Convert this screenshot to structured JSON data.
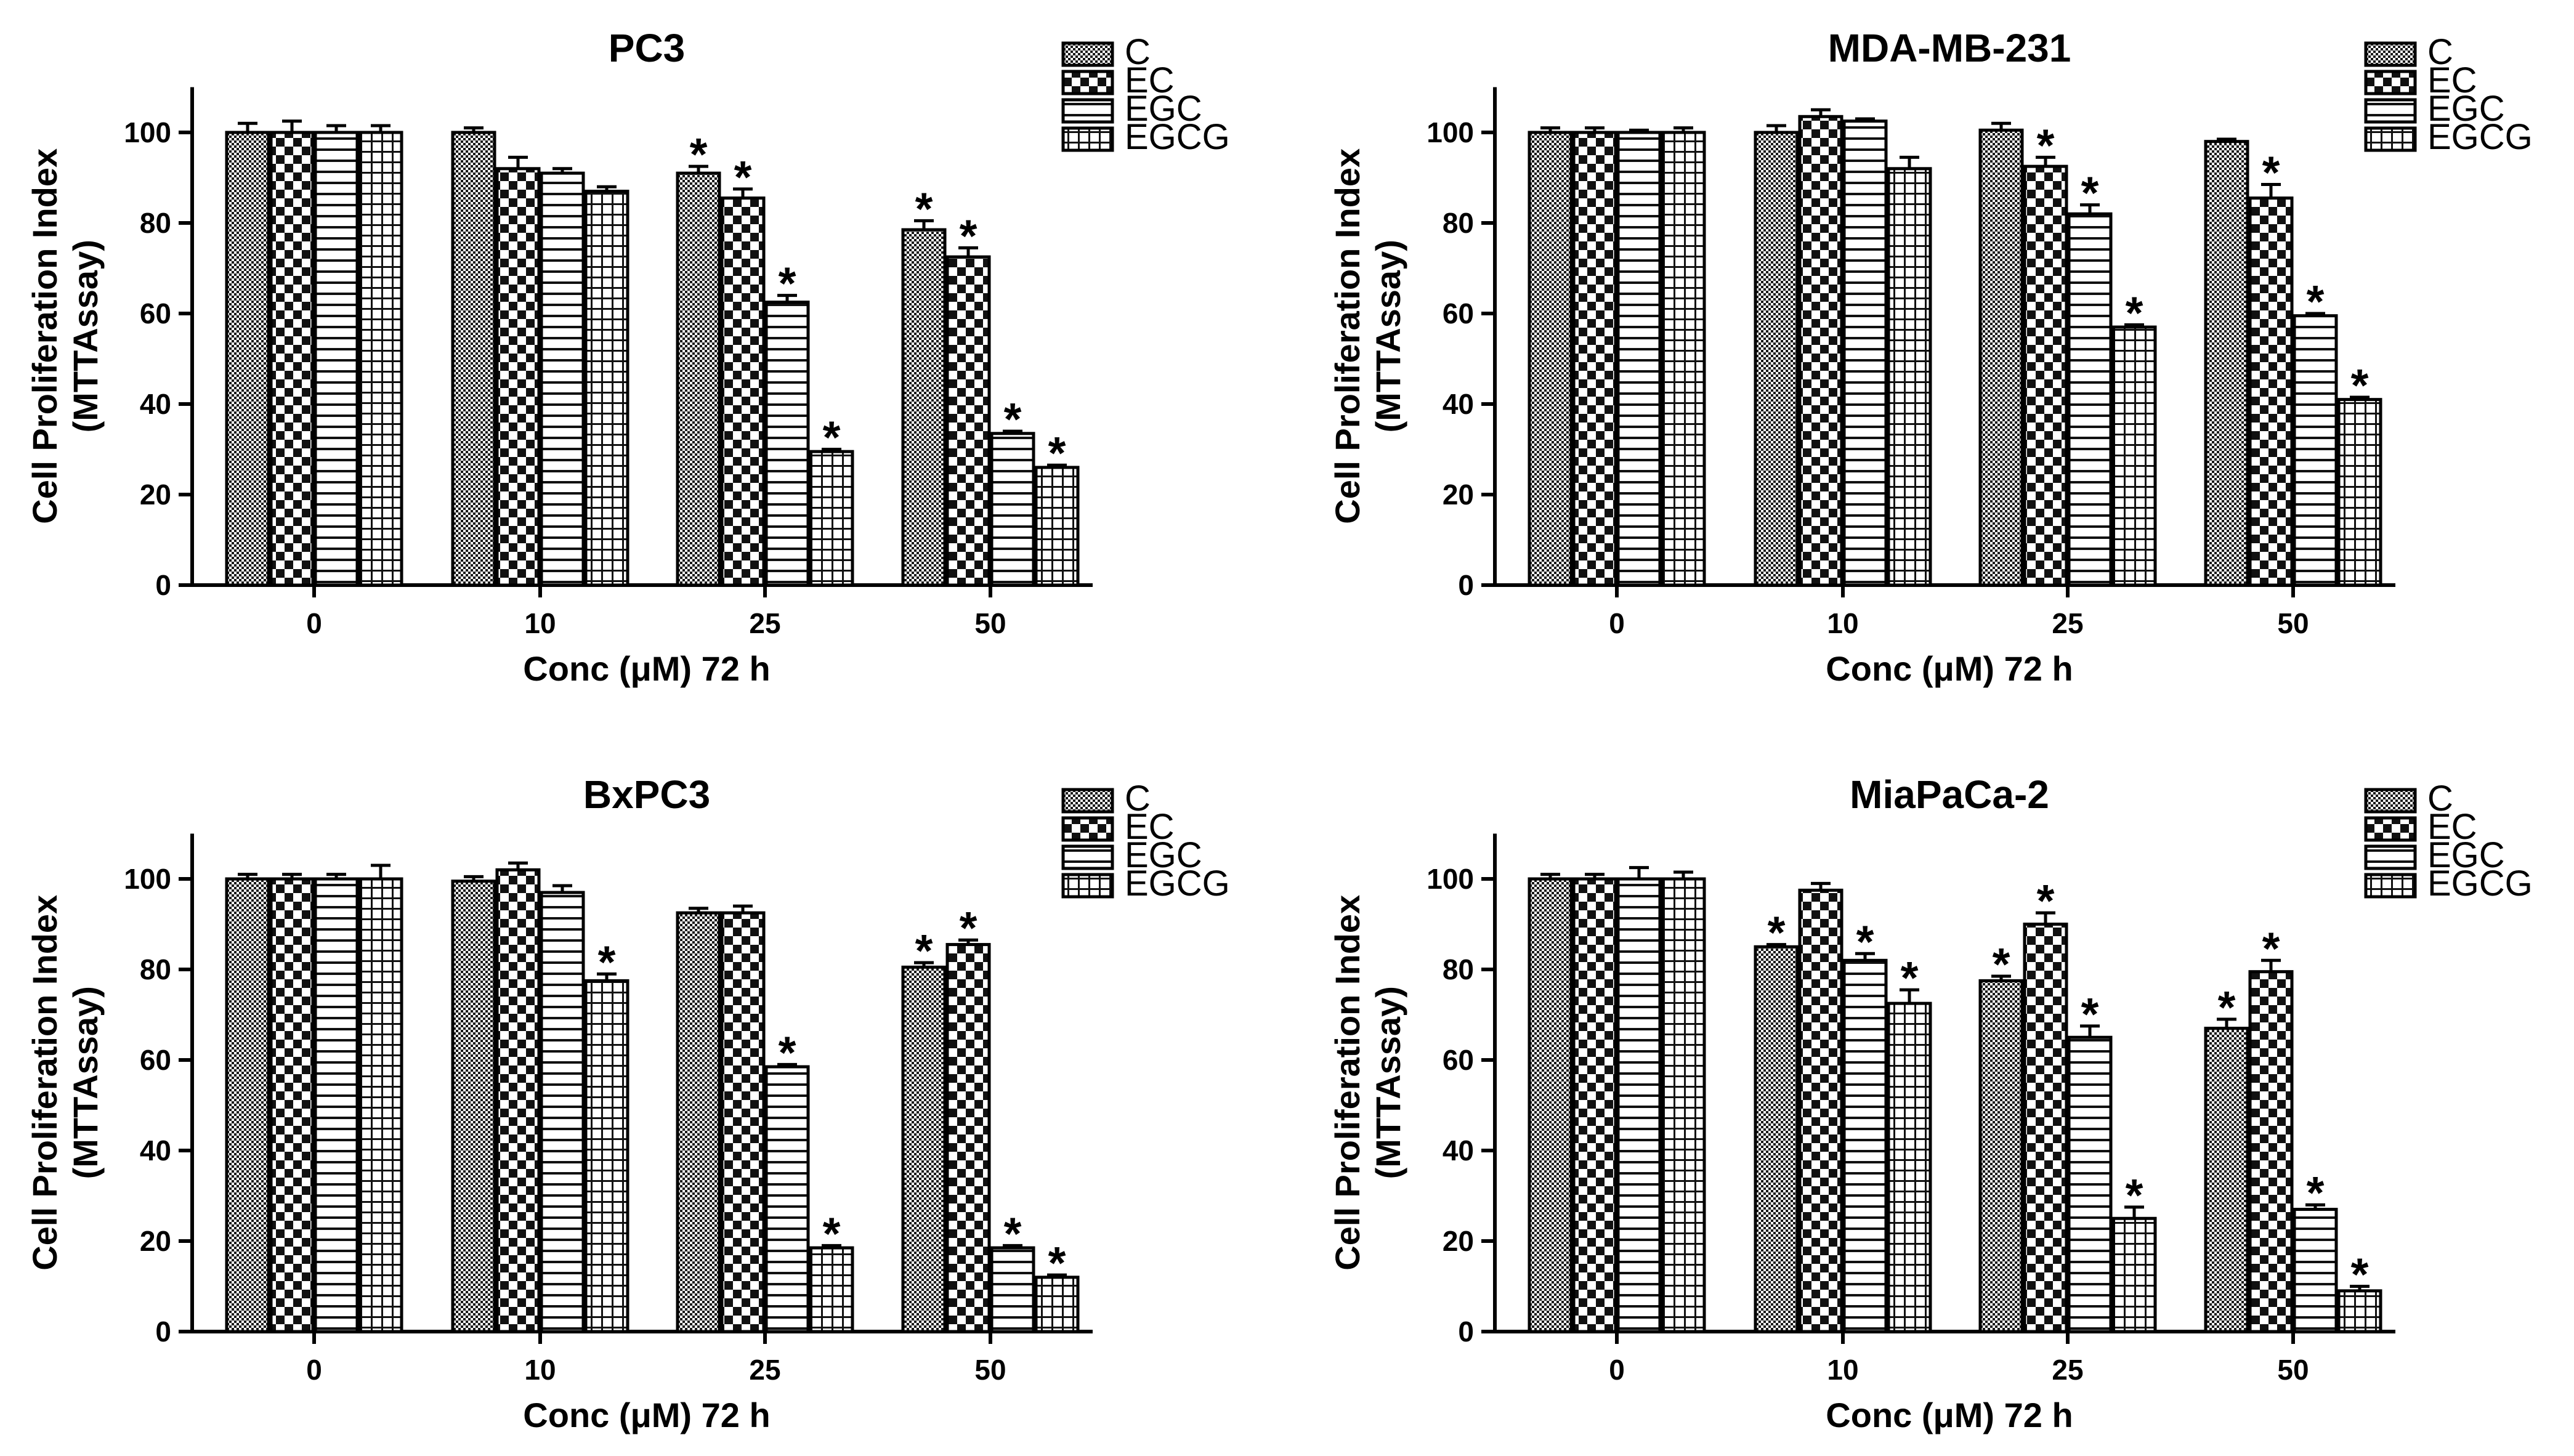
{
  "figure": {
    "series_names": [
      "C",
      "EC",
      "EGC",
      "EGCG"
    ],
    "significance_mark": "*"
  },
  "chart_data": [
    {
      "type": "bar",
      "title": "PC3",
      "xlabel": "Conc (μM) 72 h",
      "ylabel": "Cell Proliferation Index",
      "ylabel2": "(MTTAssay)",
      "categories": [
        "0",
        "10",
        "25",
        "50"
      ],
      "ylim": [
        0,
        110
      ],
      "yticks": [
        0,
        20,
        40,
        60,
        80,
        100
      ],
      "legend_position": "top-right",
      "series": [
        {
          "name": "C",
          "values": [
            100,
            100,
            91,
            78.5
          ],
          "errors": [
            2,
            1,
            1.5,
            2
          ],
          "significant": [
            false,
            false,
            true,
            true
          ]
        },
        {
          "name": "EC",
          "values": [
            100,
            92,
            85.5,
            72.5
          ],
          "errors": [
            2.5,
            2.5,
            2,
            2
          ],
          "significant": [
            false,
            false,
            true,
            true
          ]
        },
        {
          "name": "EGC",
          "values": [
            100,
            91,
            62.5,
            33.5
          ],
          "errors": [
            1.5,
            1,
            1.5,
            0.5
          ],
          "significant": [
            false,
            false,
            true,
            true
          ]
        },
        {
          "name": "EGCG",
          "values": [
            100,
            87,
            29.5,
            26
          ],
          "errors": [
            1.5,
            1,
            0.5,
            0.5
          ],
          "significant": [
            false,
            false,
            true,
            true
          ]
        }
      ]
    },
    {
      "type": "bar",
      "title": "MDA-MB-231",
      "xlabel": "Conc (μM) 72 h",
      "ylabel": "Cell Proliferation Index",
      "ylabel2": "(MTTAssay)",
      "categories": [
        "0",
        "10",
        "25",
        "50"
      ],
      "ylim": [
        0,
        110
      ],
      "yticks": [
        0,
        20,
        40,
        60,
        80,
        100
      ],
      "legend_position": "top-right",
      "series": [
        {
          "name": "C",
          "values": [
            100,
            100,
            100.5,
            98
          ],
          "errors": [
            1,
            1.5,
            1.5,
            0.5
          ],
          "significant": [
            false,
            false,
            false,
            false
          ]
        },
        {
          "name": "EC",
          "values": [
            100,
            103.5,
            92.5,
            85.5
          ],
          "errors": [
            1,
            1.5,
            2,
            3
          ],
          "significant": [
            false,
            false,
            true,
            true
          ]
        },
        {
          "name": "EGC",
          "values": [
            100,
            102.5,
            82,
            59.5
          ],
          "errors": [
            0.5,
            0.5,
            2,
            0.5
          ],
          "significant": [
            false,
            false,
            true,
            true
          ]
        },
        {
          "name": "EGCG",
          "values": [
            100,
            92,
            57,
            41
          ],
          "errors": [
            1,
            2.5,
            0.5,
            0.5
          ],
          "significant": [
            false,
            false,
            true,
            true
          ]
        }
      ]
    },
    {
      "type": "bar",
      "title": "BxPC3",
      "xlabel": "Conc (μM) 72 h",
      "ylabel": "Cell Proliferation Index",
      "ylabel2": "(MTTAssay)",
      "categories": [
        "0",
        "10",
        "25",
        "50"
      ],
      "ylim": [
        0,
        110
      ],
      "yticks": [
        0,
        20,
        40,
        60,
        80,
        100
      ],
      "legend_position": "top-right",
      "series": [
        {
          "name": "C",
          "values": [
            100,
            99.5,
            92.5,
            80.5
          ],
          "errors": [
            1,
            1,
            1,
            1
          ],
          "significant": [
            false,
            false,
            false,
            true
          ]
        },
        {
          "name": "EC",
          "values": [
            100,
            102,
            92.5,
            85.5
          ],
          "errors": [
            1,
            1.5,
            1.5,
            1
          ],
          "significant": [
            false,
            false,
            false,
            true
          ]
        },
        {
          "name": "EGC",
          "values": [
            100,
            97,
            58.5,
            18.5
          ],
          "errors": [
            1,
            1.5,
            0.5,
            0.5
          ],
          "significant": [
            false,
            false,
            true,
            true
          ]
        },
        {
          "name": "EGCG",
          "values": [
            100,
            77.5,
            18.5,
            12
          ],
          "errors": [
            3,
            1.5,
            0.5,
            0.5
          ],
          "significant": [
            false,
            true,
            true,
            true
          ]
        }
      ]
    },
    {
      "type": "bar",
      "title": "MiaPaCa-2",
      "xlabel": "Conc (μM) 72 h",
      "ylabel": "Cell Proliferation Index",
      "ylabel2": "(MTTAssay)",
      "categories": [
        "0",
        "10",
        "25",
        "50"
      ],
      "ylim": [
        0,
        110
      ],
      "yticks": [
        0,
        20,
        40,
        60,
        80,
        100
      ],
      "legend_position": "top-right",
      "series": [
        {
          "name": "C",
          "values": [
            100,
            85,
            77.5,
            67
          ],
          "errors": [
            1,
            0.5,
            1,
            2
          ],
          "significant": [
            false,
            true,
            true,
            true
          ]
        },
        {
          "name": "EC",
          "values": [
            100,
            97.5,
            90,
            79.5
          ],
          "errors": [
            1,
            1.5,
            2.5,
            2.5
          ],
          "significant": [
            false,
            false,
            true,
            true
          ]
        },
        {
          "name": "EGC",
          "values": [
            100,
            82,
            65,
            27
          ],
          "errors": [
            2.5,
            1.5,
            2.5,
            1
          ],
          "significant": [
            false,
            true,
            true,
            true
          ]
        },
        {
          "name": "EGCG",
          "values": [
            100,
            72.5,
            25,
            9
          ],
          "errors": [
            1.5,
            3,
            2.5,
            1
          ],
          "significant": [
            false,
            true,
            true,
            true
          ]
        }
      ]
    }
  ]
}
